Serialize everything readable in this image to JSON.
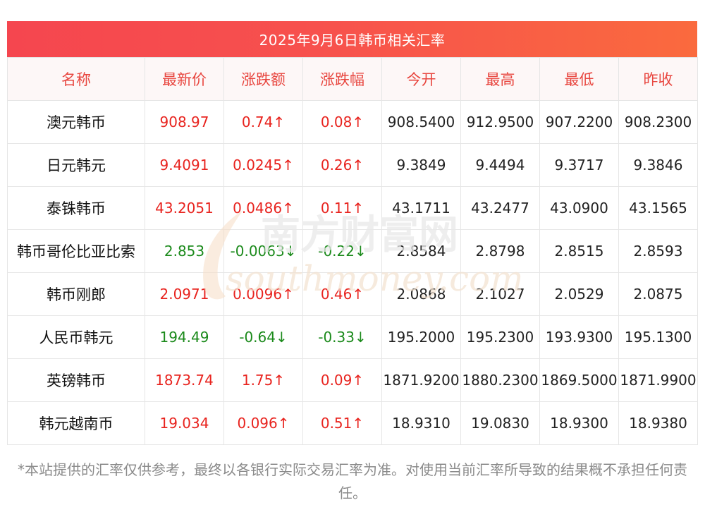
{
  "title": "2025年9月6日韩币相关汇率",
  "columns": [
    "名称",
    "最新价",
    "涨跌额",
    "涨跌幅",
    "今开",
    "最高",
    "最低",
    "昨收"
  ],
  "rows": [
    {
      "name": "澳元韩币",
      "latest": "908.97",
      "change": "0.74↑",
      "pct": "0.08↑",
      "open": "908.5400",
      "high": "912.9500",
      "low": "907.2200",
      "prev": "908.2300",
      "dir": "up"
    },
    {
      "name": "日元韩元",
      "latest": "9.4091",
      "change": "0.0245↑",
      "pct": "0.26↑",
      "open": "9.3849",
      "high": "9.4494",
      "low": "9.3717",
      "prev": "9.3846",
      "dir": "up"
    },
    {
      "name": "泰铢韩币",
      "latest": "43.2051",
      "change": "0.0486↑",
      "pct": "0.11↑",
      "open": "43.1711",
      "high": "43.2477",
      "low": "43.0900",
      "prev": "43.1565",
      "dir": "up"
    },
    {
      "name": "韩币哥伦比亚比索",
      "latest": "2.853",
      "change": "-0.0063↓",
      "pct": "-0.22↓",
      "open": "2.8584",
      "high": "2.8798",
      "low": "2.8515",
      "prev": "2.8593",
      "dir": "down"
    },
    {
      "name": "韩币刚郎",
      "latest": "2.0971",
      "change": "0.0096↑",
      "pct": "0.46↑",
      "open": "2.0868",
      "high": "2.1027",
      "low": "2.0529",
      "prev": "2.0875",
      "dir": "up"
    },
    {
      "name": "人民币韩元",
      "latest": "194.49",
      "change": "-0.64↓",
      "pct": "-0.33↓",
      "open": "195.2000",
      "high": "195.2300",
      "low": "193.9300",
      "prev": "195.1300",
      "dir": "down"
    },
    {
      "name": "英镑韩币",
      "latest": "1873.74",
      "change": "1.75↑",
      "pct": "0.09↑",
      "open": "1871.9200",
      "high": "1880.2300",
      "low": "1869.5000",
      "prev": "1871.9900",
      "dir": "up"
    },
    {
      "name": "韩元越南币",
      "latest": "19.034",
      "change": "0.096↑",
      "pct": "0.51↑",
      "open": "18.9310",
      "high": "19.0830",
      "low": "18.9300",
      "prev": "18.9380",
      "dir": "up"
    }
  ],
  "watermark": {
    "cn": "南方财富网",
    "en": "southmoney.com"
  },
  "disclaimer": "*本站提供的汇率仅供参考，最终以各银行实际交易汇率为准。对使用当前汇率所导致的结果概不承担任何责任。",
  "colors": {
    "accent": "#f5464f",
    "up": "#e8231e",
    "down": "#1b8a1b",
    "header_text": "#e8463f"
  }
}
